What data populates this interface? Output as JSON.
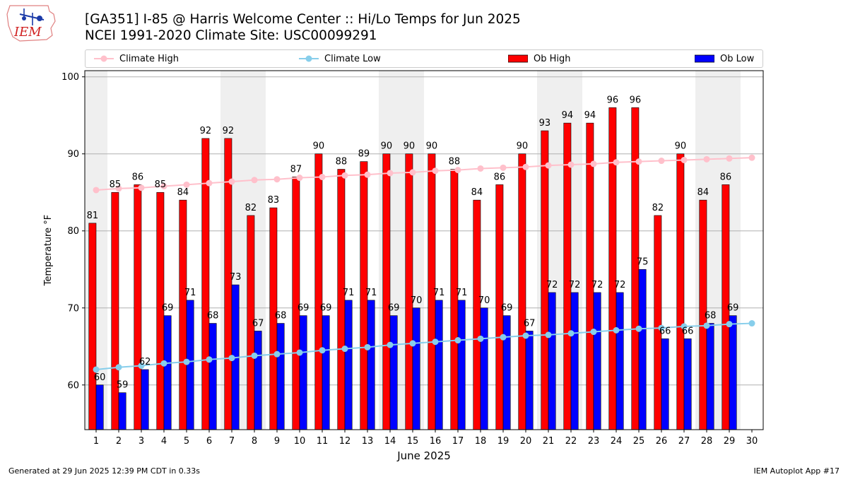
{
  "header": {
    "logo_text": "IEM",
    "title_line1": "[GA351] I-85 @ Harris Welcome Center :: Hi/Lo Temps for Jun 2025",
    "title_line2": "NCEI 1991-2020 Climate Site: USC00099291"
  },
  "legend": {
    "placement": "top",
    "items": [
      {
        "label": "Climate High",
        "kind": "line",
        "color": "#ffc0cb"
      },
      {
        "label": "Climate Low",
        "kind": "line",
        "color": "#87ceeb"
      },
      {
        "label": "Ob High",
        "kind": "bar",
        "color": "#ff0000"
      },
      {
        "label": "Ob Low",
        "kind": "bar",
        "color": "#0000ff"
      }
    ]
  },
  "chart_data": {
    "type": "bar",
    "xlabel": "June 2025",
    "ylabel": "Temperature °F",
    "ylim": [
      54.2,
      100.8
    ],
    "yticks": [
      60,
      70,
      80,
      90,
      100
    ],
    "grid": "horizontal",
    "categories": [
      1,
      2,
      3,
      4,
      5,
      6,
      7,
      8,
      9,
      10,
      11,
      12,
      13,
      14,
      15,
      16,
      17,
      18,
      19,
      20,
      21,
      22,
      23,
      24,
      25,
      26,
      27,
      28,
      29,
      30
    ],
    "weekend_shading_days": [
      1,
      7,
      8,
      14,
      15,
      21,
      22,
      28,
      29
    ],
    "series": [
      {
        "name": "Ob High",
        "type": "bar",
        "color": "#ff0000",
        "values": [
          81,
          85,
          86,
          85,
          84,
          92,
          92,
          82,
          83,
          87,
          90,
          88,
          89,
          90,
          90,
          90,
          88,
          84,
          86,
          90,
          93,
          94,
          94,
          96,
          96,
          82,
          90,
          84,
          86,
          null
        ],
        "labels": [
          "81",
          "85",
          "86",
          "85",
          "84",
          "92",
          "92",
          "82",
          "83",
          "87",
          "90",
          "88",
          "89",
          "90",
          "90",
          "90",
          "88",
          "84",
          "86",
          "90",
          "93",
          "94",
          "94",
          "96",
          "96",
          "82",
          "90",
          "84",
          "86",
          ""
        ]
      },
      {
        "name": "Ob Low",
        "type": "bar",
        "color": "#0000ff",
        "values": [
          60,
          59,
          62,
          69,
          71,
          68,
          73,
          67,
          68,
          69,
          69,
          71,
          71,
          69,
          70,
          71,
          71,
          70,
          69,
          67,
          72,
          72,
          72,
          72,
          75,
          66,
          66,
          68,
          69,
          null
        ],
        "labels": [
          "60",
          "59",
          "62",
          "69",
          "71",
          "68",
          "73",
          "67",
          "68",
          "69",
          "69",
          "71",
          "71",
          "69",
          "70",
          "71",
          "71",
          "70",
          "69",
          "67",
          "72",
          "72",
          "72",
          "72",
          "75",
          "66",
          "66",
          "68",
          "69",
          ""
        ]
      },
      {
        "name": "Climate High",
        "type": "line",
        "color": "#ffc0cb",
        "values": [
          85.3,
          85.5,
          85.6,
          85.8,
          86.0,
          86.2,
          86.4,
          86.6,
          86.7,
          86.9,
          87.0,
          87.2,
          87.3,
          87.5,
          87.6,
          87.8,
          87.9,
          88.1,
          88.2,
          88.3,
          88.5,
          88.6,
          88.7,
          88.9,
          89.0,
          89.1,
          89.2,
          89.3,
          89.4,
          89.5
        ]
      },
      {
        "name": "Climate Low",
        "type": "line",
        "color": "#87ceeb",
        "values": [
          62.0,
          62.3,
          62.5,
          62.8,
          63.0,
          63.3,
          63.5,
          63.8,
          64.0,
          64.2,
          64.5,
          64.7,
          64.9,
          65.2,
          65.4,
          65.6,
          65.8,
          66.0,
          66.2,
          66.4,
          66.5,
          66.7,
          66.9,
          67.1,
          67.3,
          67.4,
          67.6,
          67.7,
          67.9,
          68.0
        ]
      }
    ]
  },
  "footer": {
    "generated": "Generated at 29 Jun 2025 12:39 PM CDT in 0.33s",
    "app": "IEM Autoplot App #17"
  }
}
